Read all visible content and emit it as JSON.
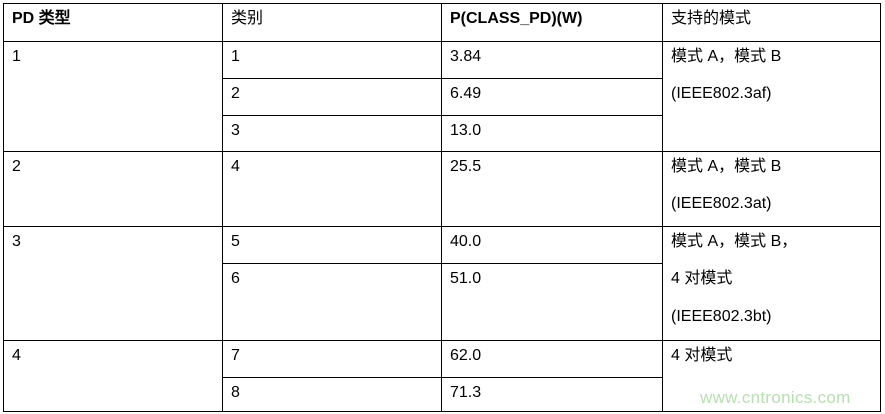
{
  "headers": {
    "pd_type": "PD 类型",
    "class": "类别",
    "power": "P(CLASS_PD)(W)",
    "modes": "支持的模式"
  },
  "groups": [
    {
      "pd_type": "1",
      "rows": [
        {
          "class": "1",
          "power": "3.84"
        },
        {
          "class": "2",
          "power": "6.49"
        },
        {
          "class": "3",
          "power": "13.0"
        }
      ],
      "modes": [
        "模式 A，模式 B",
        "(IEEE802.3af)"
      ]
    },
    {
      "pd_type": "2",
      "rows": [
        {
          "class": "4",
          "power": "25.5"
        }
      ],
      "modes": [
        "模式 A，模式 B",
        "(IEEE802.3at)"
      ]
    },
    {
      "pd_type": "3",
      "rows": [
        {
          "class": "5",
          "power": "40.0"
        },
        {
          "class": "6",
          "power": "51.0"
        }
      ],
      "modes": [
        "模式 A，模式 B，",
        "4 对模式",
        "(IEEE802.3bt)"
      ]
    },
    {
      "pd_type": "4",
      "rows": [
        {
          "class": "7",
          "power": "62.0"
        },
        {
          "class": "8",
          "power": "71.3"
        }
      ],
      "modes": [
        "4 对模式"
      ]
    }
  ],
  "watermark": "www.cntronics.com",
  "colors": {
    "watermark": "#b6e0b0",
    "border": "#000000"
  }
}
